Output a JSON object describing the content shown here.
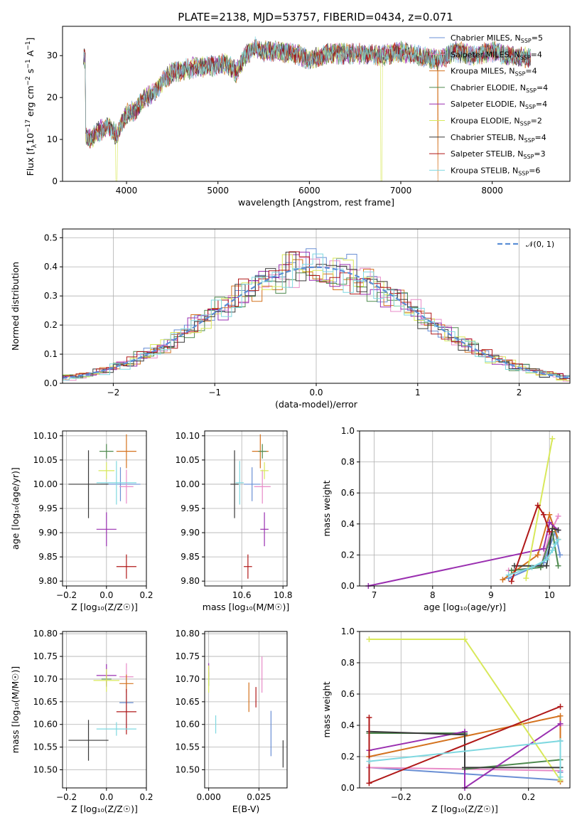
{
  "figure_title": "PLATE=2138, MJD=53757, FIBERID=0434, z=0.071",
  "colors": {
    "Chabrier MILES": "#6a8fd4",
    "Salpeter MILES": "#e88bc8",
    "Kroupa MILES": "#d4721e",
    "Chabrier ELODIE": "#4f8a4f",
    "Salpeter ELODIE": "#9a2fb0",
    "Kroupa ELODIE": "#d8e85a",
    "Chabrier STELIB": "#3a3a3a",
    "Salpeter STELIB": "#b01818",
    "Kroupa STELIB": "#7fd8e0"
  },
  "chart_data": [
    {
      "id": "spectrum",
      "type": "line",
      "title": "PLATE=2138, MJD=53757, FIBERID=0434, z=0.071",
      "xlabel": "wavelength [Angstrom, rest frame]",
      "ylabel_pre": "Flux [f",
      "ylabel_sub": "λ",
      "ylabel_mid": "10",
      "ylabel_sup": "−17",
      "ylabel_post": " erg cm",
      "ylabel_sup2": "−2",
      "ylabel_mid2": " s",
      "ylabel_sup3": "−1",
      "ylabel_end": " A",
      "ylabel_sup4": "−1",
      "ylabel_close": "]",
      "xlim": [
        3300,
        8850
      ],
      "ylim": [
        0,
        37
      ],
      "xticks": [
        4000,
        5000,
        6000,
        7000,
        8000
      ],
      "yticks": [
        0,
        10,
        20,
        30
      ],
      "envelope": {
        "x": [
          3550,
          3600,
          3700,
          3800,
          3900,
          3950,
          4000,
          4100,
          4200,
          4300,
          4400,
          4500,
          4700,
          4900,
          5100,
          5200,
          5300,
          5400,
          5500,
          5700,
          5900,
          6000,
          6200,
          6400,
          6600,
          6800,
          7000,
          7200,
          7400,
          7600,
          7800,
          8000,
          8200,
          8400
        ],
        "y": [
          11,
          10,
          12,
          13,
          11,
          14,
          16,
          17,
          20,
          21,
          24,
          26,
          27,
          27.5,
          28,
          26,
          30,
          32,
          31,
          31,
          30,
          29,
          30.5,
          30.5,
          30.5,
          30,
          31,
          30,
          29,
          31,
          30,
          31,
          30,
          29.5
        ]
      },
      "legend": [
        {
          "name": "Chabrier MILES",
          "nssp": "5"
        },
        {
          "name": "Salpeter MILES",
          "nssp": "4"
        },
        {
          "name": "Kroupa MILES",
          "nssp": "4"
        },
        {
          "name": "Chabrier ELODIE",
          "nssp": "4"
        },
        {
          "name": "Salpeter ELODIE",
          "nssp": "4"
        },
        {
          "name": "Kroupa ELODIE",
          "nssp": "2"
        },
        {
          "name": "Chabrier STELIB",
          "nssp": "4"
        },
        {
          "name": "Salpeter STELIB",
          "nssp": "3"
        },
        {
          "name": "Kroupa STELIB",
          "nssp": "6"
        }
      ],
      "legend_prefix": "N",
      "legend_sub": "SSP",
      "legend_placement": "top-right",
      "grid": false
    },
    {
      "id": "residuals",
      "type": "histogram",
      "xlabel": "(data-model)/error",
      "ylabel": "Normed distribution",
      "xlim": [
        -2.5,
        2.5
      ],
      "ylim": [
        0,
        0.53
      ],
      "xticks": [
        -2,
        -1,
        0,
        1,
        2
      ],
      "yticks": [
        0,
        0.1,
        0.2,
        0.3,
        0.4,
        0.5
      ],
      "legend": [
        {
          "name": "𝒩(0, 1)"
        }
      ],
      "legend_placement": "top-right",
      "grid": true
    },
    {
      "id": "age_vs_Z",
      "type": "errorbar",
      "xlabel": "Z [log₁₀(Z/Z☉)]",
      "ylabel": "age  [log₁₀(age/yr)]",
      "xlim": [
        -0.22,
        0.2
      ],
      "ylim": [
        9.79,
        10.11
      ],
      "xticks": [
        -0.2,
        0.0,
        0.2
      ],
      "yticks": [
        9.8,
        9.85,
        9.9,
        9.95,
        10.0,
        10.05,
        10.1
      ],
      "grid": true,
      "points": [
        {
          "series": "Chabrier MILES",
          "x": 0.07,
          "xerr": 0.2,
          "y": 10.0,
          "yerr": 0.07
        },
        {
          "series": "Salpeter MILES",
          "x": 0.1,
          "xerr": 0.07,
          "y": 9.995,
          "yerr": 0.07
        },
        {
          "series": "Kroupa MILES",
          "x": 0.1,
          "xerr": 0.1,
          "y": 10.068,
          "yerr": 0.07
        },
        {
          "series": "Chabrier ELODIE",
          "x": 0.0,
          "xerr": 0.07,
          "y": 10.068,
          "yerr": 0.03
        },
        {
          "series": "Salpeter ELODIE",
          "x": 0.0,
          "xerr": 0.1,
          "y": 9.907,
          "yerr": 0.07
        },
        {
          "series": "Kroupa ELODIE",
          "x": 0.0,
          "xerr": 0.08,
          "y": 10.028,
          "yerr": 0.035
        },
        {
          "series": "Chabrier STELIB",
          "x": -0.09,
          "xerr": 0.2,
          "y": 10.0,
          "yerr": 0.14
        },
        {
          "series": "Salpeter STELIB",
          "x": 0.1,
          "xerr": 0.1,
          "y": 9.83,
          "yerr": 0.05
        },
        {
          "series": "Kroupa STELIB",
          "x": 0.05,
          "xerr": 0.2,
          "y": 10.003,
          "yerr": 0.09
        }
      ]
    },
    {
      "id": "age_vs_mass",
      "type": "errorbar",
      "xlabel": "mass [log₁₀(M/M☉)]",
      "ylabel": "",
      "xlim": [
        10.42,
        10.82
      ],
      "ylim": [
        9.79,
        10.11
      ],
      "xticks": [
        10.6,
        10.8
      ],
      "yticks": [
        9.8,
        9.85,
        9.9,
        9.95,
        10.0,
        10.05,
        10.1
      ],
      "grid": true,
      "points": [
        {
          "series": "Chabrier MILES",
          "x": 10.65,
          "xerr": 0.08,
          "y": 10.0,
          "yerr": 0.07
        },
        {
          "series": "Salpeter MILES",
          "x": 10.7,
          "xerr": 0.08,
          "y": 9.995,
          "yerr": 0.07
        },
        {
          "series": "Kroupa MILES",
          "x": 10.69,
          "xerr": 0.08,
          "y": 10.068,
          "yerr": 0.07
        },
        {
          "series": "Chabrier ELODIE",
          "x": 10.7,
          "xerr": 0.04,
          "y": 10.068,
          "yerr": 0.03
        },
        {
          "series": "Salpeter ELODIE",
          "x": 10.71,
          "xerr": 0.04,
          "y": 9.907,
          "yerr": 0.07
        },
        {
          "series": "Kroupa ELODIE",
          "x": 10.71,
          "xerr": 0.04,
          "y": 10.028,
          "yerr": 0.035
        },
        {
          "series": "Chabrier STELIB",
          "x": 10.565,
          "xerr": 0.04,
          "y": 10.0,
          "yerr": 0.14
        },
        {
          "series": "Salpeter STELIB",
          "x": 10.63,
          "xerr": 0.04,
          "y": 9.83,
          "yerr": 0.05
        },
        {
          "series": "Kroupa STELIB",
          "x": 10.59,
          "xerr": 0.04,
          "y": 10.003,
          "yerr": 0.09
        }
      ]
    },
    {
      "id": "mw_vs_age",
      "type": "line",
      "xlabel": "age  [log₁₀(age/yr)]",
      "ylabel": "mass weight",
      "xlim": [
        6.75,
        10.35
      ],
      "ylim": [
        0,
        1.0
      ],
      "xticks": [
        7,
        8,
        9,
        10
      ],
      "yticks": [
        0,
        0.2,
        0.4,
        0.6,
        0.8,
        1.0
      ],
      "grid": true,
      "series": [
        {
          "name": "Chabrier MILES",
          "x": [
            9.3,
            9.9,
            10.0,
            10.1,
            10.18
          ],
          "y": [
            0.05,
            0.15,
            0.25,
            0.35,
            0.2
          ]
        },
        {
          "name": "Salpeter MILES",
          "x": [
            9.3,
            9.85,
            10.0,
            10.15
          ],
          "y": [
            0.1,
            0.12,
            0.33,
            0.45
          ]
        },
        {
          "name": "Kroupa MILES",
          "x": [
            9.2,
            9.8,
            10.0,
            10.15
          ],
          "y": [
            0.04,
            0.2,
            0.46,
            0.3
          ]
        },
        {
          "name": "Chabrier ELODIE",
          "x": [
            9.35,
            9.85,
            10.05,
            10.15
          ],
          "y": [
            0.1,
            0.12,
            0.35,
            0.13
          ]
        },
        {
          "name": "Salpeter ELODIE",
          "x": [
            6.9,
            9.9,
            10.0,
            10.15
          ],
          "y": [
            0.0,
            0.24,
            0.41,
            0.36
          ]
        },
        {
          "name": "Kroupa ELODIE",
          "x": [
            9.6,
            10.05
          ],
          "y": [
            0.05,
            0.95
          ]
        },
        {
          "name": "Chabrier STELIB",
          "x": [
            9.4,
            9.95,
            10.05,
            10.15
          ],
          "y": [
            0.13,
            0.13,
            0.37,
            0.36
          ]
        },
        {
          "name": "Salpeter STELIB",
          "x": [
            9.35,
            9.8,
            9.9,
            10.0
          ],
          "y": [
            0.03,
            0.52,
            0.46,
            0.35
          ]
        },
        {
          "name": "Kroupa STELIB",
          "x": [
            9.3,
            9.7,
            9.95,
            10.05,
            10.1,
            10.15
          ],
          "y": [
            0.07,
            0.12,
            0.17,
            0.23,
            0.27,
            0.3
          ]
        }
      ]
    },
    {
      "id": "mass_vs_Z",
      "type": "errorbar",
      "xlabel": "Z [log₁₀(Z/Z☉)]",
      "ylabel": "mass [log₁₀(M/M☉)]",
      "xlim": [
        -0.22,
        0.2
      ],
      "ylim": [
        10.46,
        10.805
      ],
      "xticks": [
        -0.2,
        0.0,
        0.2
      ],
      "yticks": [
        10.5,
        10.55,
        10.6,
        10.65,
        10.7,
        10.75,
        10.8
      ],
      "grid": true,
      "points": [
        {
          "series": "Chabrier MILES",
          "x": 0.1,
          "xerr": 0.07,
          "y": 10.648,
          "yerr": 0.12
        },
        {
          "series": "Salpeter MILES",
          "x": 0.1,
          "xerr": 0.07,
          "y": 10.705,
          "yerr": 0.06
        },
        {
          "series": "Kroupa MILES",
          "x": 0.1,
          "xerr": 0.07,
          "y": 10.69,
          "yerr": 0.04
        },
        {
          "series": "Chabrier ELODIE",
          "x": 0.0,
          "xerr": 0.05,
          "y": 10.7,
          "yerr": 0.03
        },
        {
          "series": "Salpeter ELODIE",
          "x": 0.0,
          "xerr": 0.1,
          "y": 10.708,
          "yerr": 0.05
        },
        {
          "series": "Kroupa ELODIE",
          "x": 0.0,
          "xerr": 0.13,
          "y": 10.697,
          "yerr": 0.05
        },
        {
          "series": "Chabrier STELIB",
          "x": -0.09,
          "xerr": 0.2,
          "y": 10.565,
          "yerr": 0.09
        },
        {
          "series": "Salpeter STELIB",
          "x": 0.1,
          "xerr": 0.1,
          "y": 10.628,
          "yerr": 0.1
        },
        {
          "series": "Kroupa STELIB",
          "x": 0.05,
          "xerr": 0.2,
          "y": 10.59,
          "yerr": 0.03
        }
      ]
    },
    {
      "id": "mass_vs_ebv",
      "type": "errorbar",
      "xlabel": "E(B-V)",
      "ylabel": "",
      "xlim": [
        -0.002,
        0.039
      ],
      "ylim": [
        10.46,
        10.805
      ],
      "xticks": [
        0.0,
        0.025
      ],
      "xtick_labels": [
        "0.000",
        "0.025"
      ],
      "yticks": [
        10.5,
        10.55,
        10.6,
        10.65,
        10.7,
        10.75,
        10.8
      ],
      "grid": true,
      "points": [
        {
          "series": "Chabrier MILES",
          "x": 0.031,
          "y": 10.58,
          "yerr": 0.1
        },
        {
          "series": "Salpeter MILES",
          "x": 0.0265,
          "y": 10.71,
          "yerr": 0.08
        },
        {
          "series": "Kroupa MILES",
          "x": 0.02,
          "y": 10.66,
          "yerr": 0.065
        },
        {
          "series": "Chabrier ELODIE",
          "x": 0.0,
          "y": 10.7,
          "yerr": 0.03
        },
        {
          "series": "Salpeter ELODIE",
          "x": 0.0,
          "y": 10.72,
          "yerr": 0.03
        },
        {
          "series": "Kroupa ELODIE",
          "x": 0.0,
          "y": 10.7,
          "yerr": 0.06
        },
        {
          "series": "Chabrier STELIB",
          "x": 0.037,
          "y": 10.535,
          "yerr": 0.06
        },
        {
          "series": "Salpeter STELIB",
          "x": 0.0235,
          "y": 10.66,
          "yerr": 0.045
        },
        {
          "series": "Kroupa STELIB",
          "x": 0.0035,
          "y": 10.6,
          "yerr": 0.04
        }
      ]
    },
    {
      "id": "mw_vs_Z",
      "type": "line",
      "xlabel": "Z [log₁₀(Z/Z☉)]",
      "ylabel": "mass weight",
      "xlim": [
        -0.33,
        0.33
      ],
      "ylim": [
        0,
        1.0
      ],
      "xticks": [
        -0.2,
        0.0,
        0.2
      ],
      "yticks": [
        0,
        0.2,
        0.4,
        0.6,
        0.8,
        1.0
      ],
      "grid": true,
      "series": [
        {
          "name": "Chabrier MILES",
          "x": [
            -0.3,
            0.3,
            0.3,
            0.3
          ],
          "y": [
            0.13,
            0.05,
            0.1,
            0.3
          ]
        },
        {
          "name": "Salpeter MILES",
          "x": [
            -0.3,
            0.3,
            0.3
          ],
          "y": [
            0.13,
            0.11,
            0.4
          ]
        },
        {
          "name": "Kroupa MILES",
          "x": [
            -0.3,
            0.3,
            0.3
          ],
          "y": [
            0.2,
            0.46,
            0.04
          ]
        },
        {
          "name": "Chabrier ELODIE",
          "x": [
            -0.3,
            0.0,
            0.0,
            0.3,
            0.3
          ],
          "y": [
            0.35,
            0.35,
            0.12,
            0.18,
            0.13
          ]
        },
        {
          "name": "Salpeter ELODIE",
          "x": [
            -0.3,
            0.0,
            0.0,
            0.3
          ],
          "y": [
            0.24,
            0.36,
            0.0,
            0.41
          ]
        },
        {
          "name": "Kroupa ELODIE",
          "x": [
            -0.3,
            0.0,
            0.3
          ],
          "y": [
            0.95,
            0.95,
            0.05
          ]
        },
        {
          "name": "Chabrier STELIB",
          "x": [
            -0.3,
            0.0,
            0.0,
            0.3
          ],
          "y": [
            0.36,
            0.34,
            0.13,
            0.13
          ]
        },
        {
          "name": "Salpeter STELIB",
          "x": [
            -0.3,
            -0.3,
            0.3
          ],
          "y": [
            0.45,
            0.03,
            0.52
          ]
        },
        {
          "name": "Kroupa STELIB",
          "x": [
            -0.3,
            0.3,
            0.3
          ],
          "y": [
            0.17,
            0.3,
            0.07
          ]
        }
      ]
    }
  ]
}
